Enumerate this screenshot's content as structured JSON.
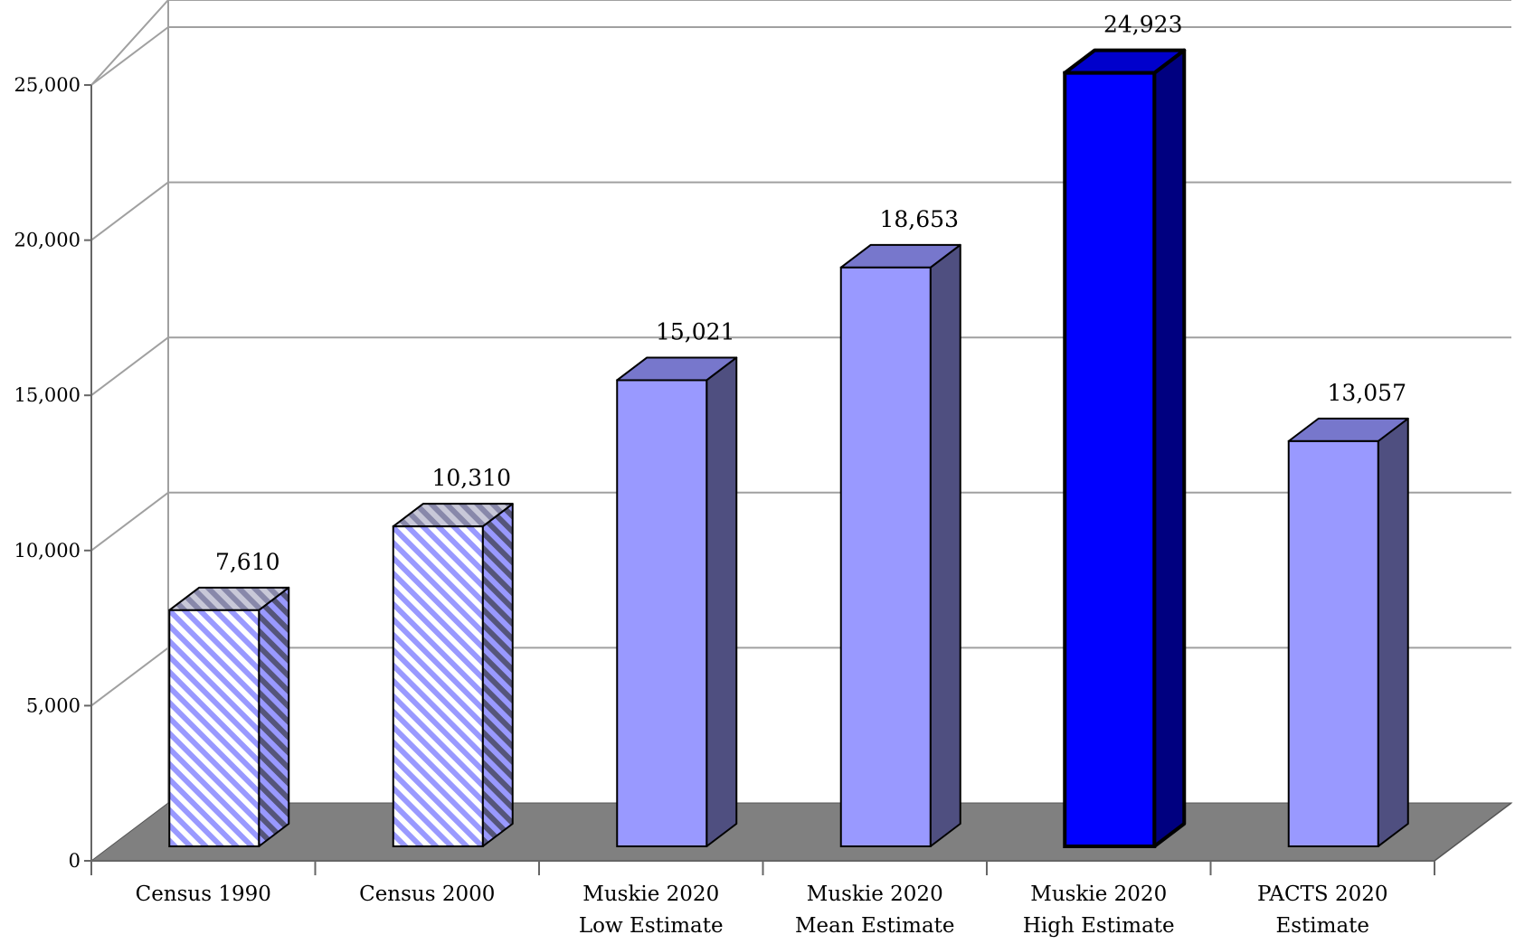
{
  "chart_data": {
    "type": "bar",
    "categories": [
      [
        "Census 1990"
      ],
      [
        "Census 2000"
      ],
      [
        "Muskie 2020",
        "Low Estimate"
      ],
      [
        "Muskie 2020",
        "Mean Estimate"
      ],
      [
        "Muskie 2020",
        "High Estimate"
      ],
      [
        "PACTS 2020",
        "Estimate"
      ]
    ],
    "values": [
      7610,
      10310,
      15021,
      18653,
      24923,
      13057
    ],
    "value_labels": [
      "7,610",
      "10,310",
      "15,021",
      "18,653",
      "24,923",
      "13,057"
    ],
    "styles": [
      "hatched",
      "hatched",
      "solid",
      "solid",
      "highlight",
      "solid"
    ],
    "ylim": [
      0,
      25000
    ],
    "yticks": [
      0,
      5000,
      10000,
      15000,
      20000,
      25000
    ],
    "ytick_labels": [
      "0",
      "5,000",
      "10,000",
      "15,000",
      "20,000",
      "25,000"
    ],
    "grid": true,
    "three_d": true,
    "title": "",
    "xlabel": "",
    "ylabel": "",
    "colors": {
      "hatch_stripe": "#9999ff",
      "hatch_side_bg": "#55557a",
      "solid_front": "#9999ff",
      "solid_top": "#7777cc",
      "solid_side": "#4f4f80",
      "highlight_front": "#0000ff",
      "highlight_top": "#0000cc",
      "highlight_side": "#000080",
      "floor": "#808080",
      "grid": "#a0a0a0"
    }
  }
}
